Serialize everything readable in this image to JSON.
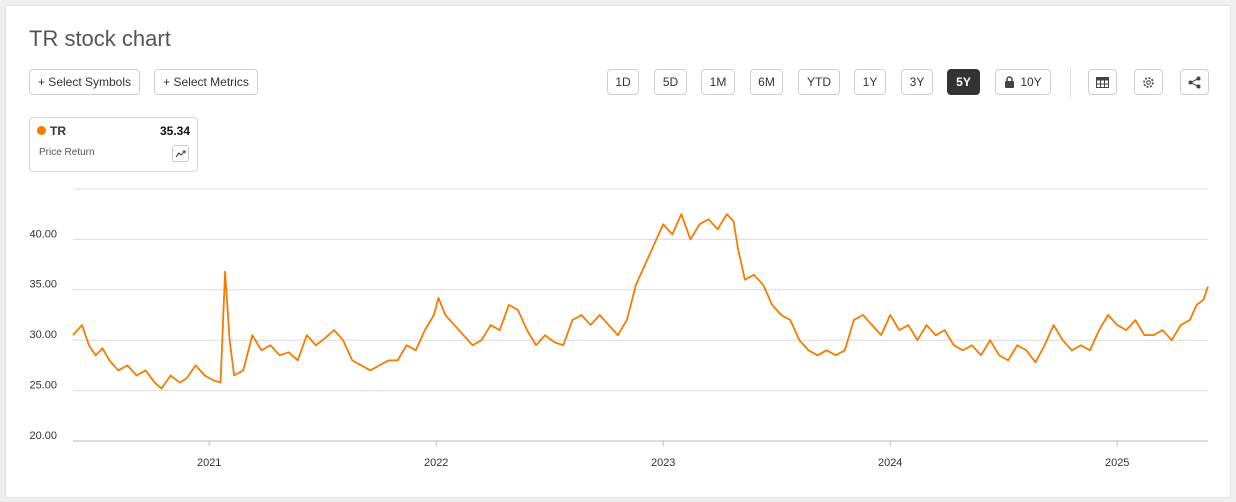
{
  "chart_data": {
    "type": "line",
    "title": "TR stock chart",
    "x": [
      2020.4,
      2020.44,
      2020.47,
      2020.5,
      2020.53,
      2020.56,
      2020.6,
      2020.64,
      2020.68,
      2020.72,
      2020.76,
      2020.79,
      2020.83,
      2020.87,
      2020.9,
      2020.94,
      2020.98,
      2021.02,
      2021.05,
      2021.07,
      2021.09,
      2021.11,
      2021.15,
      2021.19,
      2021.23,
      2021.27,
      2021.31,
      2021.35,
      2021.39,
      2021.43,
      2021.47,
      2021.51,
      2021.55,
      2021.59,
      2021.63,
      2021.67,
      2021.71,
      2021.75,
      2021.79,
      2021.83,
      2021.87,
      2021.91,
      2021.95,
      2021.99,
      2022.01,
      2022.04,
      2022.08,
      2022.12,
      2022.16,
      2022.2,
      2022.24,
      2022.28,
      2022.32,
      2022.36,
      2022.4,
      2022.44,
      2022.48,
      2022.52,
      2022.56,
      2022.6,
      2022.64,
      2022.68,
      2022.72,
      2022.76,
      2022.8,
      2022.84,
      2022.88,
      2022.92,
      2022.96,
      2023.0,
      2023.04,
      2023.08,
      2023.12,
      2023.16,
      2023.2,
      2023.24,
      2023.28,
      2023.31,
      2023.33,
      2023.36,
      2023.4,
      2023.44,
      2023.48,
      2023.52,
      2023.56,
      2023.6,
      2023.64,
      2023.68,
      2023.72,
      2023.76,
      2023.8,
      2023.84,
      2023.88,
      2023.92,
      2023.96,
      2024.0,
      2024.04,
      2024.08,
      2024.12,
      2024.16,
      2024.2,
      2024.24,
      2024.28,
      2024.32,
      2024.36,
      2024.4,
      2024.44,
      2024.48,
      2024.52,
      2024.56,
      2024.6,
      2024.64,
      2024.68,
      2024.72,
      2024.76,
      2024.8,
      2024.84,
      2024.88,
      2024.92,
      2024.96,
      2025.0,
      2025.04,
      2025.08,
      2025.12,
      2025.16,
      2025.2,
      2025.24,
      2025.28,
      2025.32,
      2025.35,
      2025.38,
      2025.4
    ],
    "series": [
      {
        "name": "TR",
        "color": "#f57c00",
        "values": [
          30.5,
          31.5,
          29.5,
          28.5,
          29.2,
          28.0,
          27.0,
          27.5,
          26.5,
          27.0,
          25.8,
          25.2,
          26.5,
          25.8,
          26.2,
          27.5,
          26.5,
          26.0,
          25.8,
          36.8,
          30.0,
          26.5,
          27.0,
          30.5,
          29.0,
          29.5,
          28.5,
          28.8,
          28.0,
          30.5,
          29.5,
          30.2,
          31.0,
          30.0,
          28.0,
          27.5,
          27.0,
          27.5,
          28.0,
          28.0,
          29.5,
          29.0,
          31.0,
          32.5,
          34.2,
          32.5,
          31.5,
          30.5,
          29.5,
          30.0,
          31.5,
          31.0,
          33.5,
          33.0,
          31.0,
          29.5,
          30.5,
          29.8,
          29.5,
          32.0,
          32.5,
          31.5,
          32.5,
          31.5,
          30.5,
          32.0,
          35.5,
          37.5,
          39.5,
          41.5,
          40.5,
          42.5,
          40.0,
          41.5,
          42.0,
          41.0,
          42.5,
          41.8,
          39.0,
          36.0,
          36.5,
          35.5,
          33.5,
          32.5,
          32.0,
          30.0,
          29.0,
          28.5,
          29.0,
          28.5,
          29.0,
          32.0,
          32.5,
          31.5,
          30.5,
          32.5,
          31.0,
          31.5,
          30.0,
          31.5,
          30.5,
          31.0,
          29.5,
          29.0,
          29.5,
          28.5,
          30.0,
          28.5,
          28.0,
          29.5,
          29.0,
          27.8,
          29.5,
          31.5,
          30.0,
          29.0,
          29.5,
          29.0,
          31.0,
          32.5,
          31.5,
          31.0,
          32.0,
          30.5,
          30.5,
          31.0,
          30.0,
          31.5,
          32.0,
          33.5,
          34.0,
          35.34
        ]
      }
    ],
    "xlim": [
      2020.4,
      2025.4
    ],
    "xticks": [
      2021,
      2022,
      2023,
      2024,
      2025
    ],
    "ylim": [
      20,
      45
    ],
    "yticks": [
      {
        "value": 20,
        "label": "20.00"
      },
      {
        "value": 25,
        "label": "25.00"
      },
      {
        "value": 30,
        "label": "30.00"
      },
      {
        "value": 35,
        "label": "35.00"
      },
      {
        "value": 40,
        "label": "40.00"
      }
    ],
    "grid": true
  },
  "toolbar": {
    "buttons": [
      "+ Select Symbols",
      "+ Select Metrics"
    ],
    "ranges": [
      "1D",
      "5D",
      "1M",
      "6M",
      "YTD",
      "1Y",
      "3Y",
      "5Y",
      "10Y"
    ]
  },
  "legend_card": {
    "last_value": 35.34,
    "metric": "Price Return"
  }
}
